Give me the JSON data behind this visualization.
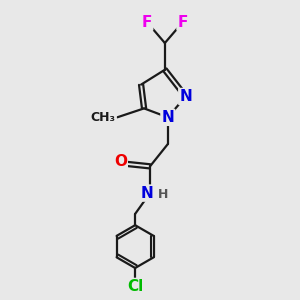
{
  "background_color": "#e8e8e8",
  "bond_color": "#1a1a1a",
  "atom_colors": {
    "N": "#0000dd",
    "O": "#ee0000",
    "F": "#ee00ee",
    "Cl": "#00bb00",
    "H": "#555555",
    "C": "#1a1a1a"
  },
  "font_size_atom": 11,
  "font_size_small": 9,
  "figsize": [
    3.0,
    3.0
  ],
  "dpi": 100
}
